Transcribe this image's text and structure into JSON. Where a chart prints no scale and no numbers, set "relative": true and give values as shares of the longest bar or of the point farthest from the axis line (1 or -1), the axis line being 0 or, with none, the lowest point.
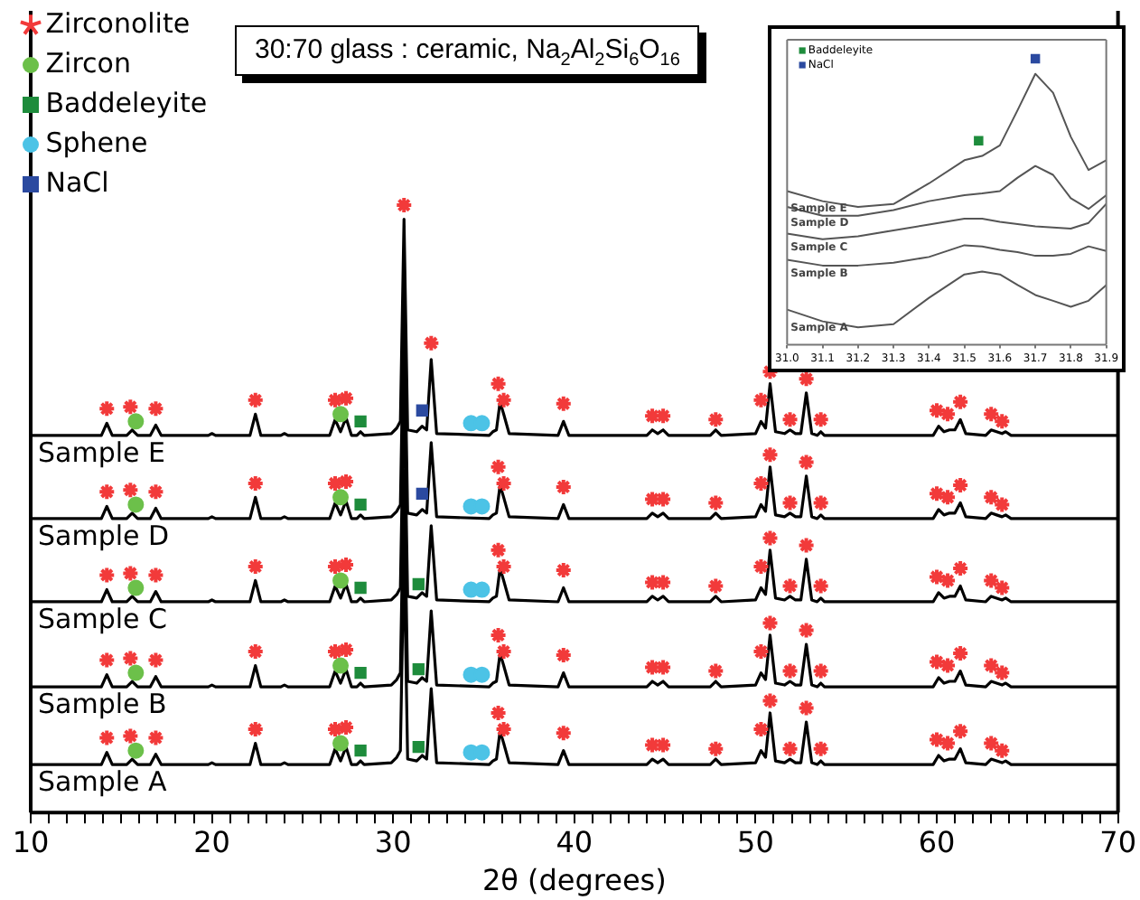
{
  "chart_data": [
    {
      "type": "line",
      "title": "30:70 glass : ceramic, Na$_{2}$Al$_{2}$Si$_{6}$O$_{16}$",
      "xlabel": "2θ (degrees)",
      "relative": true,
      "tick_labels": "x",
      "legend": "top left",
      "marker": "none",
      "xlim": [
        10,
        70
      ],
      "xticks": [
        10,
        {
          "value": 11,
          "label": null
        },
        {
          "value": 12,
          "label": null
        },
        {
          "value": 13,
          "label": null
        },
        {
          "value": 14,
          "label": null
        },
        {
          "value": 15,
          "label": null
        },
        {
          "value": 16,
          "label": null
        },
        {
          "value": 17,
          "label": null
        },
        {
          "value": 18,
          "label": null
        },
        {
          "value": 19,
          "label": null
        },
        20,
        {
          "value": 21,
          "label": null
        },
        {
          "value": 22,
          "label": null
        },
        {
          "value": 23,
          "label": null
        },
        {
          "value": 24,
          "label": null
        },
        {
          "value": 25,
          "label": null
        },
        {
          "value": 26,
          "label": null
        },
        {
          "value": 27,
          "label": null
        },
        {
          "value": 28,
          "label": null
        },
        {
          "value": 29,
          "label": null
        },
        30,
        {
          "value": 31,
          "label": null
        },
        {
          "value": 32,
          "label": null
        },
        {
          "value": 33,
          "label": null
        },
        {
          "value": 34,
          "label": null
        },
        {
          "value": 35,
          "label": null
        },
        {
          "value": 36,
          "label": null
        },
        {
          "value": 37,
          "label": null
        },
        {
          "value": 38,
          "label": null
        },
        {
          "value": 39,
          "label": null
        },
        40,
        {
          "value": 41,
          "label": null
        },
        {
          "value": 42,
          "label": null
        },
        {
          "value": 43,
          "label": null
        },
        {
          "value": 44,
          "label": null
        },
        {
          "value": 45,
          "label": null
        },
        {
          "value": 46,
          "label": null
        },
        {
          "value": 47,
          "label": null
        },
        {
          "value": 48,
          "label": null
        },
        {
          "value": 49,
          "label": null
        },
        50,
        {
          "value": 51,
          "label": null
        },
        {
          "value": 52,
          "label": null
        },
        {
          "value": 53,
          "label": null
        },
        {
          "value": 54,
          "label": null
        },
        {
          "value": 55,
          "label": null
        },
        {
          "value": 56,
          "label": null
        },
        {
          "value": 57,
          "label": null
        },
        {
          "value": 58,
          "label": null
        },
        {
          "value": 59,
          "label": null
        },
        60,
        {
          "value": 61,
          "label": null
        },
        {
          "value": 62,
          "label": null
        },
        {
          "value": 63,
          "label": null
        },
        {
          "value": 64,
          "label": null
        },
        {
          "value": 65,
          "label": null
        },
        {
          "value": 66,
          "label": null
        },
        {
          "value": 67,
          "label": null
        },
        {
          "value": 68,
          "label": null
        },
        {
          "value": 69,
          "label": null
        },
        70
      ],
      "x": [
        10,
        13.9,
        14.2,
        14.5,
        15.3,
        15.6,
        15.9,
        16.6,
        16.9,
        17.2,
        19.8,
        20.0,
        20.2,
        22.1,
        22.4,
        22.7,
        23.8,
        24.0,
        24.2,
        26.5,
        26.8,
        27.1,
        27.4,
        27.7,
        28.0,
        28.2,
        28.4,
        29.9,
        30.2,
        30.4,
        30.6,
        30.8,
        31.3,
        31.6,
        31.85,
        32.1,
        32.4,
        35.3,
        35.5,
        35.7,
        35.9,
        36.1,
        36.4,
        39.1,
        39.4,
        39.7,
        44.0,
        44.3,
        44.6,
        44.9,
        45.2,
        47.5,
        47.8,
        48.1,
        50.0,
        50.3,
        50.55,
        50.8,
        51.1,
        51.6,
        51.9,
        52.2,
        52.5,
        52.8,
        53.1,
        53.4,
        53.6,
        53.8,
        59.8,
        60.1,
        60.4,
        60.7,
        61.0,
        61.3,
        61.6,
        62.7,
        63.0,
        63.3,
        63.6,
        63.8,
        64.1,
        70
      ],
      "series": [
        {
          "name": "Sample A",
          "color": "#000000",
          "values": [
            0.079,
            0.079,
            0.099,
            0.079,
            0.079,
            0.088,
            0.079,
            0.079,
            0.096,
            0.079,
            0.079,
            0.082,
            0.079,
            0.079,
            0.114,
            0.079,
            0.079,
            0.082,
            0.079,
            0.079,
            0.105,
            0.085,
            0.108,
            0.079,
            0.079,
            0.085,
            0.079,
            0.082,
            0.091,
            0.102,
            0.435,
            0.088,
            0.085,
            0.094,
            0.088,
            0.204,
            0.082,
            0.079,
            0.085,
            0.088,
            0.134,
            0.114,
            0.082,
            0.079,
            0.102,
            0.079,
            0.079,
            0.088,
            0.082,
            0.088,
            0.079,
            0.079,
            0.088,
            0.079,
            0.082,
            0.102,
            0.091,
            0.164,
            0.085,
            0.082,
            0.088,
            0.082,
            0.082,
            0.149,
            0.082,
            0.079,
            0.085,
            0.079,
            0.079,
            0.094,
            0.085,
            0.088,
            0.088,
            0.105,
            0.082,
            0.079,
            0.088,
            0.085,
            0.082,
            0.085,
            0.079,
            0.079
          ]
        },
        {
          "name": "Sample B",
          "color": "#000000",
          "values": [
            0.207,
            0.207,
            0.227,
            0.207,
            0.207,
            0.216,
            0.207,
            0.207,
            0.224,
            0.207,
            0.207,
            0.21,
            0.207,
            0.207,
            0.242,
            0.207,
            0.207,
            0.21,
            0.207,
            0.207,
            0.233,
            0.213,
            0.236,
            0.207,
            0.207,
            0.213,
            0.207,
            0.21,
            0.219,
            0.23,
            0.563,
            0.216,
            0.213,
            0.222,
            0.216,
            0.332,
            0.21,
            0.207,
            0.213,
            0.216,
            0.262,
            0.242,
            0.21,
            0.207,
            0.23,
            0.207,
            0.207,
            0.216,
            0.21,
            0.216,
            0.207,
            0.207,
            0.216,
            0.207,
            0.21,
            0.23,
            0.219,
            0.292,
            0.213,
            0.21,
            0.216,
            0.21,
            0.21,
            0.277,
            0.21,
            0.207,
            0.213,
            0.207,
            0.207,
            0.222,
            0.213,
            0.216,
            0.216,
            0.233,
            0.21,
            0.207,
            0.216,
            0.213,
            0.21,
            0.213,
            0.207,
            0.207
          ]
        },
        {
          "name": "Sample C",
          "color": "#000000",
          "values": [
            0.347,
            0.347,
            0.367,
            0.347,
            0.347,
            0.356,
            0.347,
            0.347,
            0.364,
            0.347,
            0.347,
            0.35,
            0.347,
            0.347,
            0.382,
            0.347,
            0.347,
            0.35,
            0.347,
            0.347,
            0.373,
            0.353,
            0.376,
            0.347,
            0.347,
            0.353,
            0.347,
            0.35,
            0.359,
            0.37,
            0.703,
            0.356,
            0.353,
            0.362,
            0.356,
            0.472,
            0.35,
            0.347,
            0.353,
            0.356,
            0.402,
            0.382,
            0.35,
            0.347,
            0.37,
            0.347,
            0.347,
            0.356,
            0.35,
            0.356,
            0.347,
            0.347,
            0.356,
            0.347,
            0.35,
            0.37,
            0.359,
            0.432,
            0.353,
            0.35,
            0.356,
            0.35,
            0.35,
            0.417,
            0.35,
            0.347,
            0.353,
            0.347,
            0.347,
            0.362,
            0.353,
            0.356,
            0.356,
            0.373,
            0.35,
            0.347,
            0.356,
            0.353,
            0.35,
            0.353,
            0.347,
            0.347
          ]
        },
        {
          "name": "Sample D",
          "color": "#000000",
          "values": [
            0.484,
            0.484,
            0.504,
            0.484,
            0.484,
            0.493,
            0.484,
            0.484,
            0.501,
            0.484,
            0.484,
            0.487,
            0.484,
            0.484,
            0.519,
            0.484,
            0.484,
            0.487,
            0.484,
            0.484,
            0.51,
            0.49,
            0.513,
            0.484,
            0.484,
            0.49,
            0.484,
            0.487,
            0.496,
            0.507,
            0.84,
            0.493,
            0.49,
            0.499,
            0.493,
            0.609,
            0.487,
            0.484,
            0.49,
            0.493,
            0.539,
            0.519,
            0.487,
            0.484,
            0.507,
            0.484,
            0.484,
            0.493,
            0.487,
            0.493,
            0.484,
            0.484,
            0.493,
            0.484,
            0.487,
            0.507,
            0.496,
            0.569,
            0.49,
            0.487,
            0.493,
            0.487,
            0.487,
            0.554,
            0.487,
            0.484,
            0.49,
            0.484,
            0.484,
            0.499,
            0.49,
            0.493,
            0.493,
            0.51,
            0.487,
            0.484,
            0.493,
            0.49,
            0.487,
            0.49,
            0.484,
            0.484
          ]
        },
        {
          "name": "Sample E",
          "color": "#000000",
          "values": [
            0.621,
            0.621,
            0.641,
            0.621,
            0.621,
            0.63,
            0.621,
            0.621,
            0.638,
            0.621,
            0.621,
            0.624,
            0.621,
            0.621,
            0.656,
            0.621,
            0.621,
            0.624,
            0.621,
            0.621,
            0.647,
            0.627,
            0.65,
            0.621,
            0.621,
            0.627,
            0.621,
            0.624,
            0.633,
            0.644,
            0.977,
            0.63,
            0.627,
            0.636,
            0.63,
            0.746,
            0.624,
            0.621,
            0.627,
            0.63,
            0.676,
            0.656,
            0.624,
            0.621,
            0.644,
            0.621,
            0.621,
            0.63,
            0.624,
            0.63,
            0.621,
            0.621,
            0.63,
            0.621,
            0.624,
            0.644,
            0.633,
            0.706,
            0.627,
            0.624,
            0.63,
            0.624,
            0.624,
            0.691,
            0.624,
            0.621,
            0.627,
            0.621,
            0.621,
            0.636,
            0.627,
            0.63,
            0.63,
            0.647,
            0.624,
            0.621,
            0.63,
            0.627,
            0.624,
            0.627,
            0.621,
            0.621
          ]
        },
        {
          "name": "Zirconolite",
          "type": "scatter",
          "marker": "cross",
          "color": "#f23a3a",
          "x": [
            14.2,
            15.5,
            16.9,
            22.4,
            26.8,
            27.4,
            35.8,
            36.1,
            39.4,
            44.3,
            44.9,
            47.8,
            50.3,
            50.8,
            51.9,
            52.8,
            53.6,
            60.0,
            60.6,
            61.3,
            63.0,
            63.6,
            14.2,
            15.5,
            16.9,
            22.4,
            26.8,
            27.4,
            35.8,
            36.1,
            39.4,
            44.3,
            44.9,
            47.8,
            50.3,
            50.8,
            51.9,
            52.8,
            53.6,
            60.0,
            60.6,
            61.3,
            63.0,
            63.6,
            14.2,
            15.5,
            16.9,
            22.4,
            26.8,
            27.4,
            35.8,
            36.1,
            39.4,
            44.3,
            44.9,
            47.8,
            50.3,
            50.8,
            51.9,
            52.8,
            53.6,
            60.0,
            60.6,
            61.3,
            63.0,
            63.6,
            14.2,
            15.5,
            16.9,
            22.4,
            26.8,
            27.4,
            35.8,
            36.1,
            39.4,
            44.3,
            44.9,
            47.8,
            50.3,
            50.8,
            51.9,
            52.8,
            53.6,
            60.0,
            60.6,
            61.3,
            63.0,
            63.6,
            14.2,
            15.5,
            16.9,
            22.4,
            26.8,
            27.4,
            35.8,
            36.1,
            39.4,
            44.3,
            44.9,
            47.8,
            50.3,
            50.8,
            51.9,
            52.8,
            53.6,
            60.0,
            60.6,
            61.3,
            63.0,
            63.6,
            30.6,
            32.1
          ],
          "values": [
            0.123,
            0.126,
            0.123,
            0.137,
            0.137,
            0.14,
            0.164,
            0.137,
            0.131,
            0.111,
            0.111,
            0.105,
            0.137,
            0.184,
            0.105,
            0.172,
            0.105,
            0.12,
            0.114,
            0.134,
            0.114,
            0.102,
            0.251,
            0.254,
            0.251,
            0.265,
            0.265,
            0.268,
            0.292,
            0.265,
            0.259,
            0.239,
            0.239,
            0.233,
            0.265,
            0.312,
            0.233,
            0.3,
            0.233,
            0.248,
            0.242,
            0.262,
            0.242,
            0.23,
            0.391,
            0.394,
            0.391,
            0.405,
            0.405,
            0.408,
            0.432,
            0.405,
            0.399,
            0.379,
            0.379,
            0.373,
            0.405,
            0.452,
            0.373,
            0.44,
            0.373,
            0.388,
            0.382,
            0.402,
            0.382,
            0.37,
            0.528,
            0.531,
            0.528,
            0.542,
            0.542,
            0.545,
            0.569,
            0.542,
            0.536,
            0.516,
            0.516,
            0.51,
            0.542,
            0.589,
            0.51,
            0.577,
            0.51,
            0.525,
            0.519,
            0.539,
            0.519,
            0.507,
            0.665,
            0.668,
            0.665,
            0.679,
            0.679,
            0.682,
            0.706,
            0.679,
            0.673,
            0.653,
            0.653,
            0.647,
            0.679,
            0.726,
            0.647,
            0.714,
            0.647,
            0.662,
            0.656,
            0.676,
            0.656,
            0.644,
            1.0,
            0.773
          ]
        },
        {
          "name": "Zircon",
          "type": "scatter",
          "marker": "circle",
          "color": "#6cc04a",
          "x": [
            15.8,
            27.1,
            15.8,
            27.1,
            15.8,
            27.1,
            15.8,
            27.1,
            15.8,
            27.1
          ],
          "values": [
            0.102,
            0.114,
            0.23,
            0.242,
            0.37,
            0.382,
            0.507,
            0.519,
            0.644,
            0.656
          ]
        },
        {
          "name": "Baddeleyite",
          "type": "scatter",
          "marker": "square",
          "color": "#1e8c3c",
          "x": [
            28.2,
            31.4,
            28.2,
            31.4,
            28.2,
            31.4,
            28.2,
            28.2
          ],
          "values": [
            0.102,
            0.108,
            0.23,
            0.236,
            0.37,
            0.376,
            0.507,
            0.644
          ]
        },
        {
          "name": "Sphene",
          "type": "scatter",
          "marker": "circle",
          "color": "#4cc3e6",
          "x": [
            34.3,
            34.9,
            34.3,
            34.9,
            34.3,
            34.9,
            34.3,
            34.9,
            34.3,
            34.9
          ],
          "values": [
            0.099,
            0.099,
            0.227,
            0.227,
            0.367,
            0.367,
            0.504,
            0.504,
            0.641,
            0.641
          ]
        },
        {
          "name": "NaCl",
          "type": "scatter",
          "marker": "square",
          "color": "#2b4aa0",
          "x": [
            31.6,
            31.6
          ],
          "values": [
            0.525,
            0.662
          ]
        }
      ]
    },
    {
      "type": "line",
      "relative": true,
      "tick_labels": "x",
      "legend": "top left",
      "marker": "none",
      "xlim": [
        31,
        31.9
      ],
      "xticks": [
        {
          "value": 31,
          "label": "31.0"
        },
        31.1,
        31.2,
        31.3,
        31.4,
        31.5,
        31.6,
        31.7,
        31.8,
        31.9
      ],
      "x": [
        31.0,
        31.1,
        31.2,
        31.3,
        31.4,
        31.5,
        31.55,
        31.6,
        31.65,
        31.7,
        31.75,
        31.8,
        31.85,
        31.9
      ],
      "series": [
        {
          "name": "Sample A",
          "color": "#555555",
          "values": [
            0.123,
            0.082,
            0.061,
            0.072,
            0.164,
            0.246,
            0.256,
            0.246,
            0.209,
            0.174,
            0.154,
            0.133,
            0.154,
            0.209
          ]
        },
        {
          "name": "Sample B",
          "color": "#555555",
          "values": [
            0.297,
            0.277,
            0.277,
            0.287,
            0.307,
            0.348,
            0.344,
            0.332,
            0.324,
            0.311,
            0.311,
            0.318,
            0.344,
            0.328
          ]
        },
        {
          "name": "Sample C",
          "color": "#555555",
          "values": [
            0.389,
            0.369,
            0.379,
            0.4,
            0.42,
            0.441,
            0.441,
            0.43,
            0.422,
            0.414,
            0.41,
            0.406,
            0.426,
            0.492
          ]
        },
        {
          "name": "Sample D",
          "color": "#555555",
          "values": [
            0.482,
            0.451,
            0.451,
            0.471,
            0.502,
            0.523,
            0.529,
            0.537,
            0.584,
            0.625,
            0.594,
            0.512,
            0.475,
            0.523
          ]
        },
        {
          "name": "Sample E",
          "color": "#555555",
          "values": [
            0.537,
            0.502,
            0.482,
            0.492,
            0.564,
            0.645,
            0.66,
            0.697,
            0.82,
            0.947,
            0.881,
            0.727,
            0.611,
            0.645
          ]
        },
        {
          "name": "Baddeleyite",
          "type": "scatter",
          "marker": "square",
          "color": "#1e8c3c",
          "x": [
            31.54
          ],
          "values": [
            0.713
          ]
        },
        {
          "name": "NaCl",
          "type": "scatter",
          "marker": "square",
          "color": "#2b4aa0",
          "x": [
            31.7
          ],
          "values": [
            1.0
          ]
        }
      ]
    }
  ]
}
